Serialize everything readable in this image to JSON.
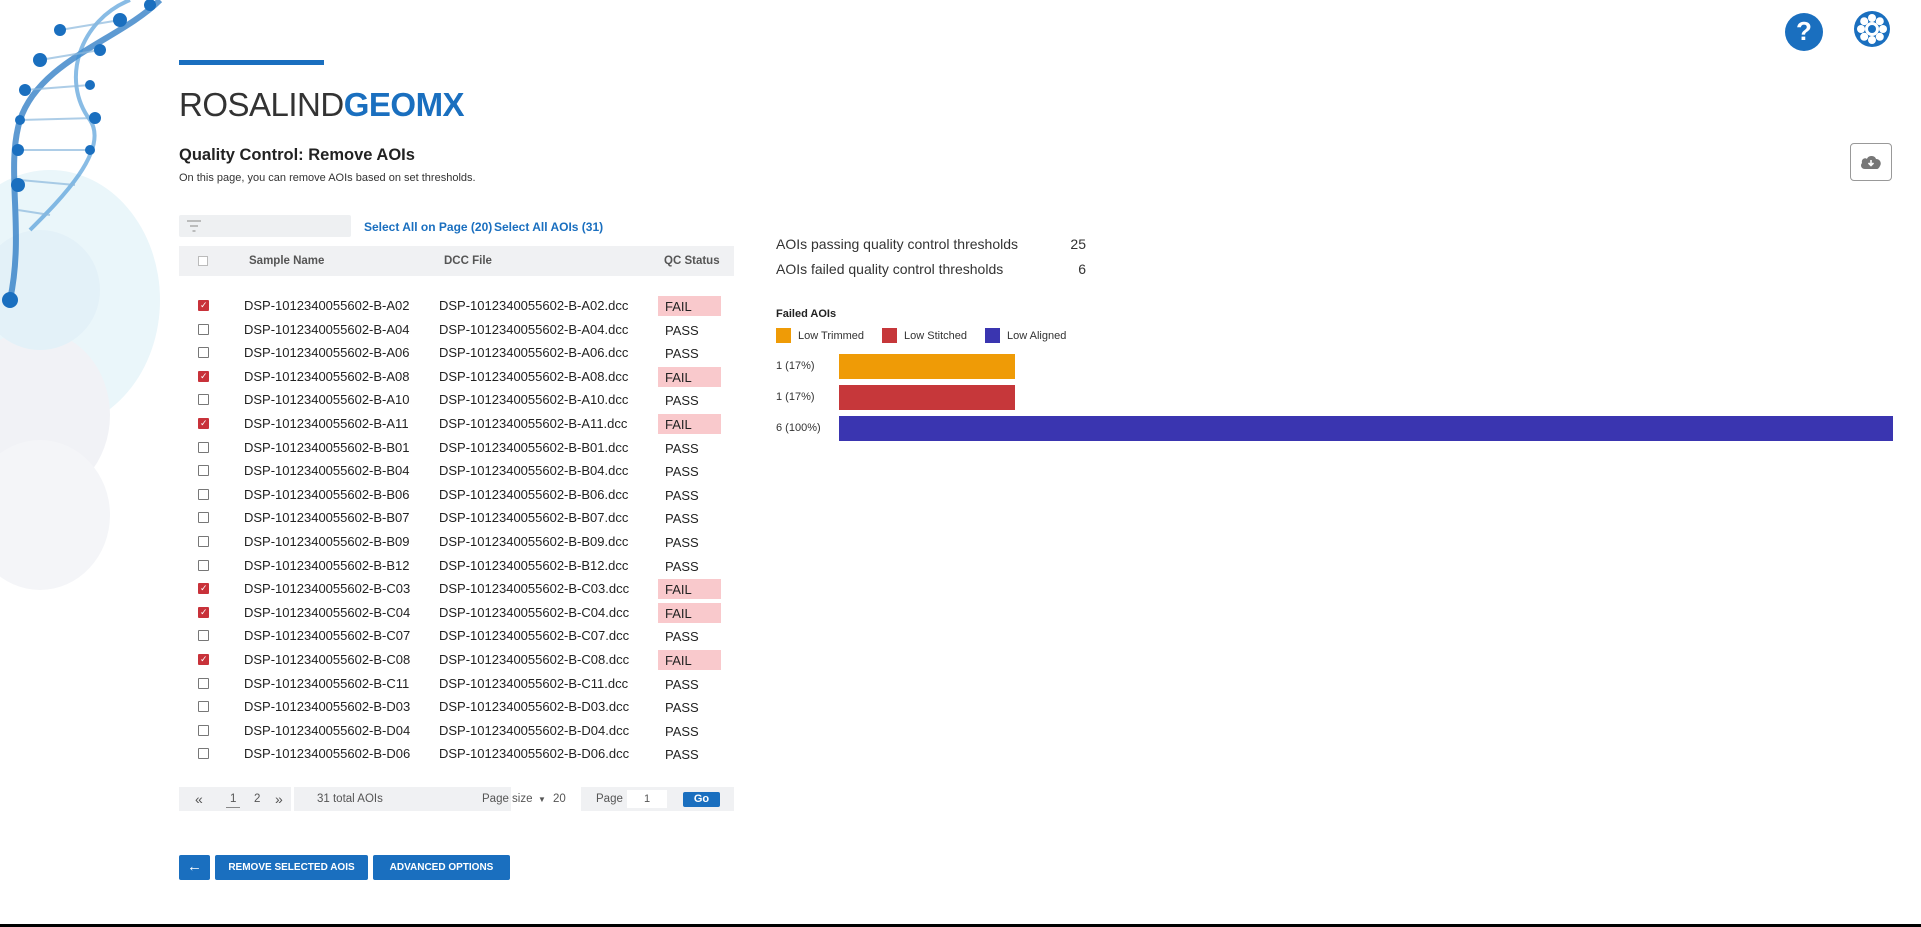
{
  "header": {
    "logo_light": "ROSALIND",
    "logo_bold": "GEOMX",
    "help_icon": "help-icon",
    "settings_icon": "gear-icon"
  },
  "page": {
    "title": "Quality Control: Remove AOIs",
    "description": "On this page, you can remove AOIs based on set thresholds."
  },
  "toolbar": {
    "filter_placeholder": "",
    "select_page_label": "Select All on Page (20)",
    "select_all_label": "Select All AOIs (31)",
    "download_icon": "cloud-download-icon"
  },
  "table": {
    "columns": [
      "Sample Name",
      "DCC File",
      "QC Status"
    ],
    "rows": [
      {
        "sample": "DSP-1012340055602-B-A02",
        "file": "DSP-1012340055602-B-A02.dcc",
        "status": "FAIL",
        "checked": true
      },
      {
        "sample": "DSP-1012340055602-B-A04",
        "file": "DSP-1012340055602-B-A04.dcc",
        "status": "PASS",
        "checked": false
      },
      {
        "sample": "DSP-1012340055602-B-A06",
        "file": "DSP-1012340055602-B-A06.dcc",
        "status": "PASS",
        "checked": false
      },
      {
        "sample": "DSP-1012340055602-B-A08",
        "file": "DSP-1012340055602-B-A08.dcc",
        "status": "FAIL",
        "checked": true
      },
      {
        "sample": "DSP-1012340055602-B-A10",
        "file": "DSP-1012340055602-B-A10.dcc",
        "status": "PASS",
        "checked": false
      },
      {
        "sample": "DSP-1012340055602-B-A11",
        "file": "DSP-1012340055602-B-A11.dcc",
        "status": "FAIL",
        "checked": true
      },
      {
        "sample": "DSP-1012340055602-B-B01",
        "file": "DSP-1012340055602-B-B01.dcc",
        "status": "PASS",
        "checked": false
      },
      {
        "sample": "DSP-1012340055602-B-B04",
        "file": "DSP-1012340055602-B-B04.dcc",
        "status": "PASS",
        "checked": false
      },
      {
        "sample": "DSP-1012340055602-B-B06",
        "file": "DSP-1012340055602-B-B06.dcc",
        "status": "PASS",
        "checked": false
      },
      {
        "sample": "DSP-1012340055602-B-B07",
        "file": "DSP-1012340055602-B-B07.dcc",
        "status": "PASS",
        "checked": false
      },
      {
        "sample": "DSP-1012340055602-B-B09",
        "file": "DSP-1012340055602-B-B09.dcc",
        "status": "PASS",
        "checked": false
      },
      {
        "sample": "DSP-1012340055602-B-B12",
        "file": "DSP-1012340055602-B-B12.dcc",
        "status": "PASS",
        "checked": false
      },
      {
        "sample": "DSP-1012340055602-B-C03",
        "file": "DSP-1012340055602-B-C03.dcc",
        "status": "FAIL",
        "checked": true
      },
      {
        "sample": "DSP-1012340055602-B-C04",
        "file": "DSP-1012340055602-B-C04.dcc",
        "status": "FAIL",
        "checked": true
      },
      {
        "sample": "DSP-1012340055602-B-C07",
        "file": "DSP-1012340055602-B-C07.dcc",
        "status": "PASS",
        "checked": false
      },
      {
        "sample": "DSP-1012340055602-B-C08",
        "file": "DSP-1012340055602-B-C08.dcc",
        "status": "FAIL",
        "checked": true
      },
      {
        "sample": "DSP-1012340055602-B-C11",
        "file": "DSP-1012340055602-B-C11.dcc",
        "status": "PASS",
        "checked": false
      },
      {
        "sample": "DSP-1012340055602-B-D03",
        "file": "DSP-1012340055602-B-D03.dcc",
        "status": "PASS",
        "checked": false
      },
      {
        "sample": "DSP-1012340055602-B-D04",
        "file": "DSP-1012340055602-B-D04.dcc",
        "status": "PASS",
        "checked": false
      },
      {
        "sample": "DSP-1012340055602-B-D06",
        "file": "DSP-1012340055602-B-D06.dcc",
        "status": "PASS",
        "checked": false
      }
    ]
  },
  "pager": {
    "first_icon": "double-chevron-left-icon",
    "pages": [
      "1",
      "2"
    ],
    "last_icon": "double-chevron-right-icon",
    "total": "31 total AOIs",
    "page_size_label": "Page size",
    "page_size_value": "20",
    "page_label": "Page",
    "page_value": "1",
    "go_label": "Go"
  },
  "actions": {
    "back_icon": "arrow-left-icon",
    "remove_label": "REMOVE SELECTED AOIS",
    "advanced_label": "ADVANCED OPTIONS"
  },
  "stats": {
    "passing_label": "AOIs passing quality control thresholds",
    "passing_value": "25",
    "failed_label": "AOIs failed quality control thresholds",
    "failed_value": "6"
  },
  "chart_data": {
    "type": "bar",
    "title": "Failed AOIs",
    "orientation": "horizontal",
    "categories": [
      "Low Trimmed",
      "Low Stitched",
      "Low Aligned"
    ],
    "values": [
      1,
      1,
      6
    ],
    "labels": [
      "1 (17%)",
      "1 (17%)",
      "6 (100%)"
    ],
    "colors": [
      "#ef9b06",
      "#c6373a",
      "#3a35b0"
    ],
    "xlim": [
      0,
      6
    ],
    "legend": "top-left",
    "grid": false
  }
}
